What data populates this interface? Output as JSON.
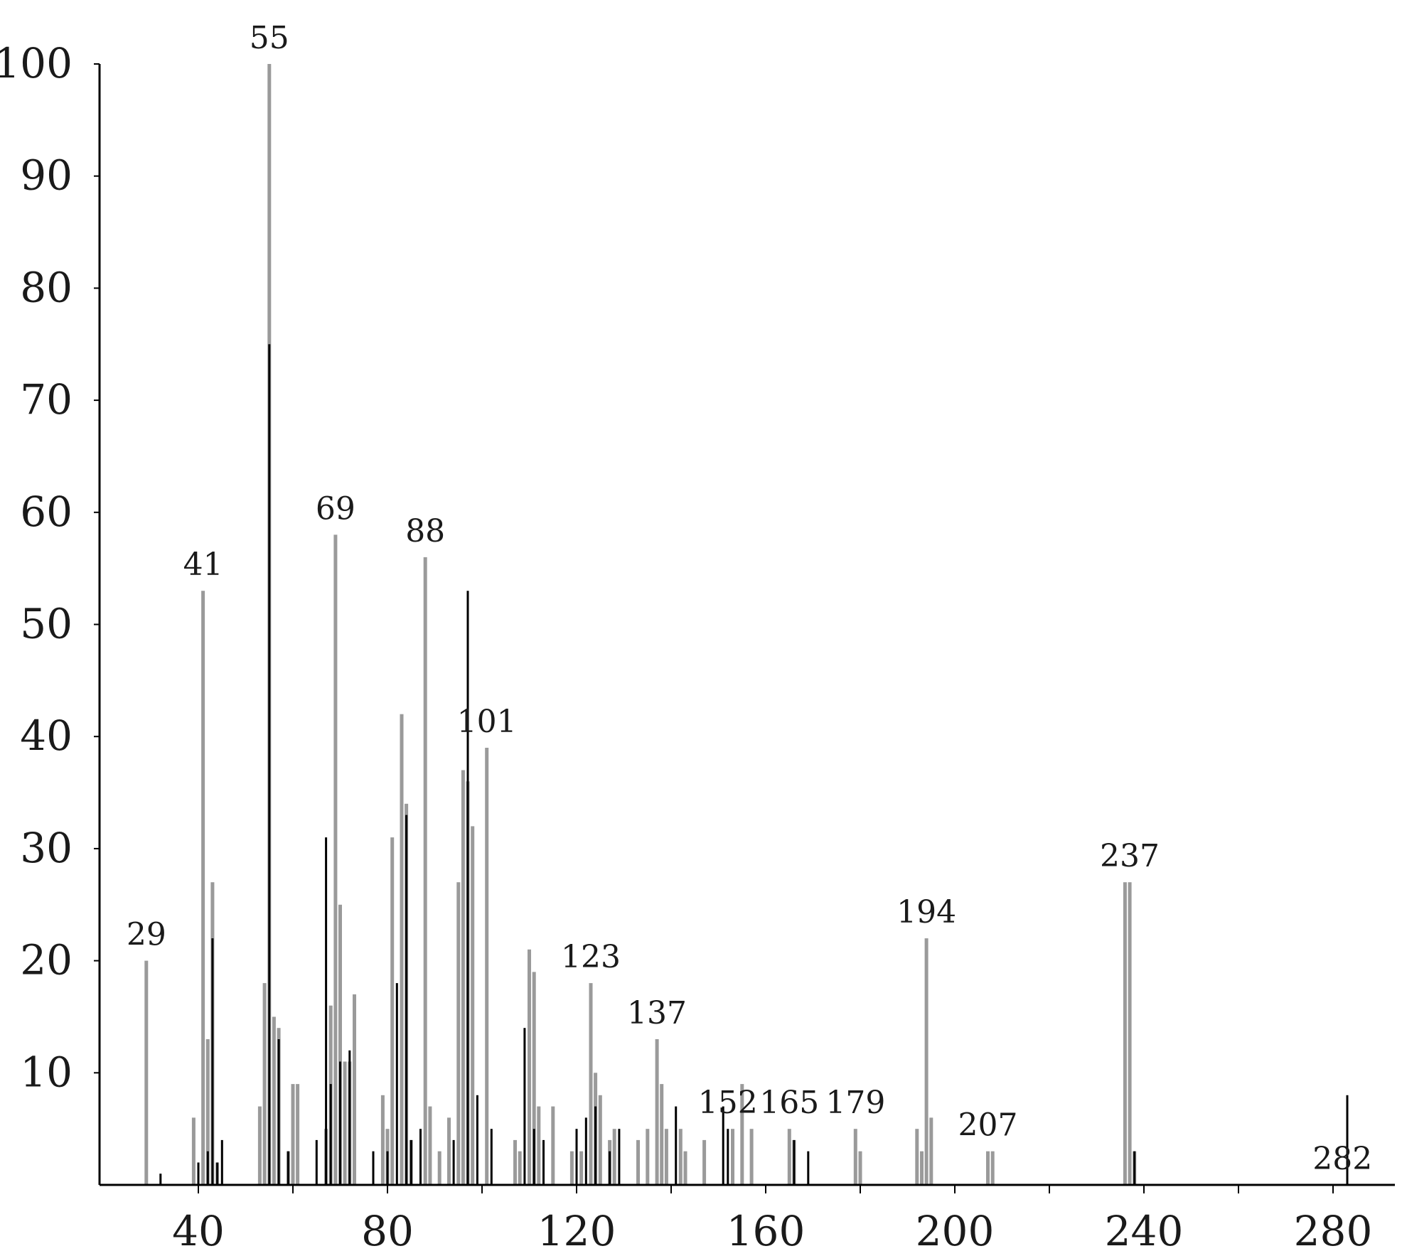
{
  "chart_data": {
    "type": "bar",
    "title": "",
    "xlabel": "",
    "ylabel": "",
    "xlim": [
      20,
      294
    ],
    "ylim": [
      0,
      100
    ],
    "x_ticks": [
      40,
      80,
      120,
      160,
      200,
      240,
      280
    ],
    "x_minor_ticks": [
      60,
      100,
      140,
      180,
      220,
      260
    ],
    "y_ticks": [
      10,
      20,
      30,
      40,
      50,
      60,
      70,
      80,
      90,
      100
    ],
    "grid": false,
    "legend": "none",
    "colors": {
      "series_a": "#9a9a9a",
      "series_b": "#000000",
      "axis": "#000000"
    },
    "series": [
      {
        "name": "",
        "color": "#9a9a9a",
        "points": [
          [
            29,
            20
          ],
          [
            39,
            6
          ],
          [
            41,
            53
          ],
          [
            42,
            13
          ],
          [
            43,
            27
          ],
          [
            44,
            2
          ],
          [
            53,
            7
          ],
          [
            54,
            18
          ],
          [
            55,
            100
          ],
          [
            56,
            15
          ],
          [
            57,
            14
          ],
          [
            59,
            3
          ],
          [
            60,
            9
          ],
          [
            61,
            9
          ],
          [
            67,
            5
          ],
          [
            68,
            16
          ],
          [
            69,
            58
          ],
          [
            70,
            25
          ],
          [
            71,
            11
          ],
          [
            72,
            11
          ],
          [
            73,
            17
          ],
          [
            79,
            8
          ],
          [
            80,
            5
          ],
          [
            81,
            31
          ],
          [
            83,
            42
          ],
          [
            84,
            34
          ],
          [
            85,
            4
          ],
          [
            88,
            56
          ],
          [
            89,
            7
          ],
          [
            91,
            3
          ],
          [
            93,
            6
          ],
          [
            95,
            27
          ],
          [
            96,
            37
          ],
          [
            97,
            36
          ],
          [
            98,
            32
          ],
          [
            101,
            39
          ],
          [
            107,
            4
          ],
          [
            108,
            3
          ],
          [
            110,
            21
          ],
          [
            111,
            19
          ],
          [
            112,
            7
          ],
          [
            115,
            7
          ],
          [
            119,
            3
          ],
          [
            121,
            3
          ],
          [
            123,
            18
          ],
          [
            124,
            10
          ],
          [
            125,
            8
          ],
          [
            127,
            4
          ],
          [
            128,
            5
          ],
          [
            133,
            4
          ],
          [
            135,
            5
          ],
          [
            137,
            13
          ],
          [
            138,
            9
          ],
          [
            139,
            5
          ],
          [
            142,
            5
          ],
          [
            143,
            3
          ],
          [
            147,
            4
          ],
          [
            153,
            5
          ],
          [
            155,
            9
          ],
          [
            157,
            5
          ],
          [
            165,
            5
          ],
          [
            166,
            4
          ],
          [
            179,
            5
          ],
          [
            180,
            3
          ],
          [
            192,
            5
          ],
          [
            193,
            3
          ],
          [
            194,
            22
          ],
          [
            195,
            6
          ],
          [
            207,
            3
          ],
          [
            208,
            3
          ],
          [
            236,
            27
          ],
          [
            237,
            27
          ],
          [
            238,
            3
          ]
        ]
      },
      {
        "name": "",
        "color": "#000000",
        "points": [
          [
            32,
            1
          ],
          [
            40,
            2
          ],
          [
            42,
            3
          ],
          [
            43,
            22
          ],
          [
            44,
            2
          ],
          [
            45,
            4
          ],
          [
            55,
            75
          ],
          [
            57,
            13
          ],
          [
            59,
            3
          ],
          [
            65,
            4
          ],
          [
            67,
            31
          ],
          [
            68,
            9
          ],
          [
            70,
            11
          ],
          [
            72,
            12
          ],
          [
            77,
            3
          ],
          [
            80,
            3
          ],
          [
            82,
            18
          ],
          [
            84,
            33
          ],
          [
            85,
            4
          ],
          [
            87,
            5
          ],
          [
            94,
            4
          ],
          [
            97,
            53
          ],
          [
            99,
            8
          ],
          [
            102,
            5
          ],
          [
            109,
            14
          ],
          [
            111,
            5
          ],
          [
            113,
            4
          ],
          [
            120,
            5
          ],
          [
            122,
            6
          ],
          [
            124,
            7
          ],
          [
            127,
            3
          ],
          [
            129,
            5
          ],
          [
            141,
            7
          ],
          [
            151,
            7
          ],
          [
            152,
            5
          ],
          [
            166,
            4
          ],
          [
            169,
            3
          ],
          [
            238,
            3
          ],
          [
            283,
            8
          ]
        ]
      }
    ],
    "annotations": [
      {
        "x": 29,
        "label": "29"
      },
      {
        "x": 41,
        "label": "41"
      },
      {
        "x": 55,
        "label": "55"
      },
      {
        "x": 69,
        "label": "69"
      },
      {
        "x": 88,
        "label": "88"
      },
      {
        "x": 101,
        "label": "101"
      },
      {
        "x": 123,
        "label": "123"
      },
      {
        "x": 137,
        "label": "137"
      },
      {
        "x": 152,
        "label": "152"
      },
      {
        "x": 165,
        "label": "165"
      },
      {
        "x": 179,
        "label": "179"
      },
      {
        "x": 194,
        "label": "194"
      },
      {
        "x": 207,
        "label": "207"
      },
      {
        "x": 237,
        "label": "237"
      },
      {
        "x": 282,
        "label": "282"
      }
    ]
  }
}
